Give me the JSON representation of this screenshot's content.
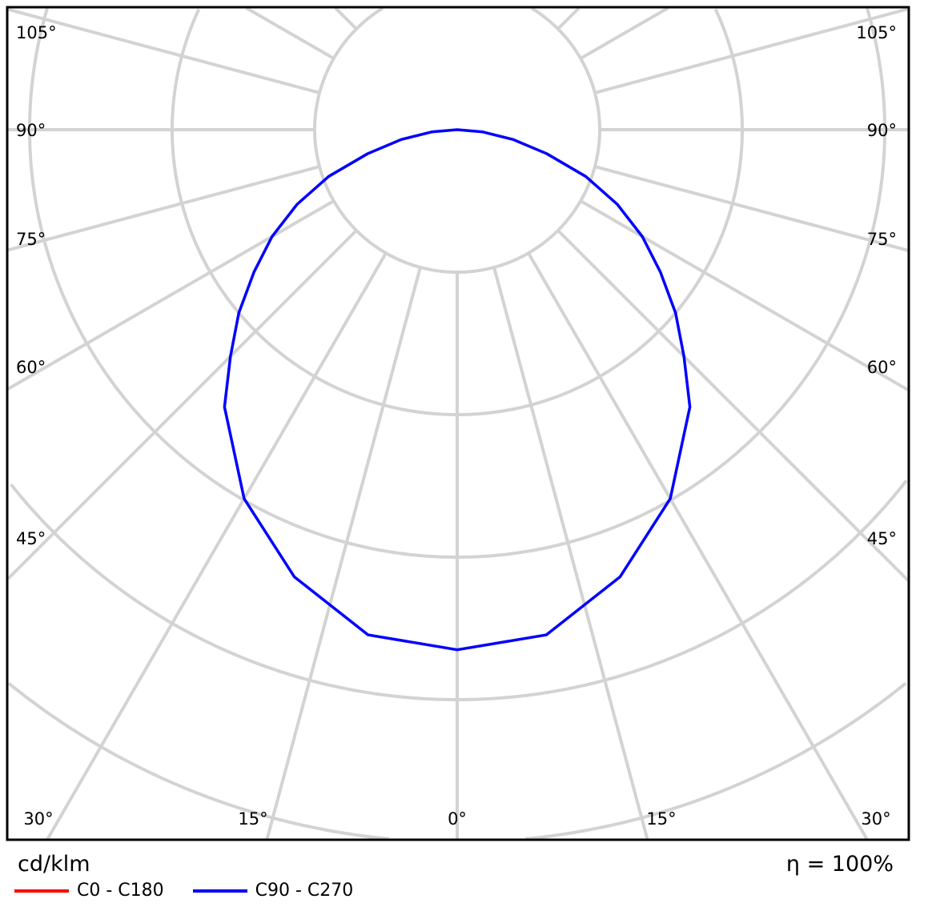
{
  "chart_data": {
    "type": "polar",
    "unit_label": "cd/klm",
    "efficiency_label": "η = 100%",
    "angle_labels": [
      "105°",
      "90°",
      "75°",
      "60°",
      "45°",
      "30°",
      "15°",
      "0°"
    ],
    "angles_deg": [
      0,
      10,
      20,
      30,
      40,
      45,
      50,
      55,
      60,
      65,
      70,
      75,
      80,
      85,
      90
    ],
    "series": [
      {
        "name": "C0 - C180",
        "color": "#ff0000",
        "values_ring_units": [
          3.65,
          3.6,
          3.34,
          2.99,
          2.54,
          2.25,
          2.0,
          1.74,
          1.5,
          1.24,
          0.96,
          0.65,
          0.4,
          0.18,
          0
        ]
      },
      {
        "name": "C90 - C270",
        "color": "#0000ff",
        "values_ring_units": [
          3.65,
          3.6,
          3.34,
          2.99,
          2.54,
          2.25,
          2.0,
          1.74,
          1.5,
          1.24,
          0.96,
          0.65,
          0.4,
          0.18,
          0
        ]
      }
    ],
    "grid": true,
    "grid_color": "#d3d3d3",
    "legend": "bottom-left"
  }
}
